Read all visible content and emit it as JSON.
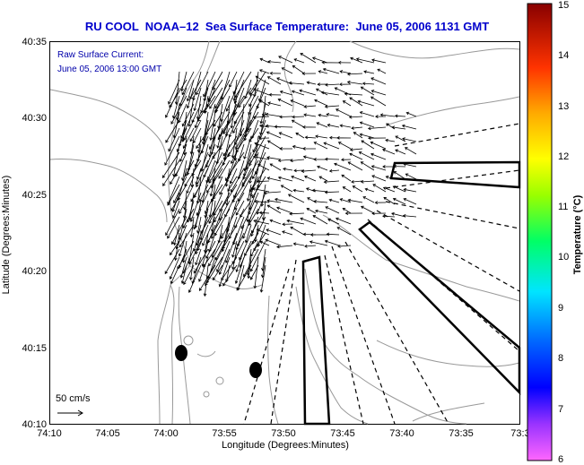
{
  "title": "RU COOL  NOAA–12  Sea Surface Temperature:  June 05, 2006 1131 GMT",
  "annotation": {
    "line1": "Raw Surface Current:",
    "line2": "June 05, 2006 13:00 GMT"
  },
  "scale": {
    "label": "50 cm/s"
  },
  "xlabel": "Longitude (Degrees:Minutes)",
  "ylabel": "Latitude (Degrees:Minutes)",
  "xticks": [
    "74:10",
    "74:05",
    "74:00",
    "73:55",
    "73:50",
    "73:45",
    "73:40",
    "73:35",
    "73:3"
  ],
  "yticks": [
    "40:35",
    "40:30",
    "40:25",
    "40:20",
    "40:15",
    "40:10"
  ],
  "colorbar": {
    "title": "Temperature (°C)",
    "ticks": [
      "15",
      "14",
      "13",
      "12",
      "11",
      "10",
      "9",
      "8",
      "7",
      "6"
    ],
    "min": 6,
    "max": 15
  },
  "colors": {
    "title": "#0000cc",
    "annotation": "#0000aa",
    "coast": "#999999",
    "vectors": "#000000"
  }
}
